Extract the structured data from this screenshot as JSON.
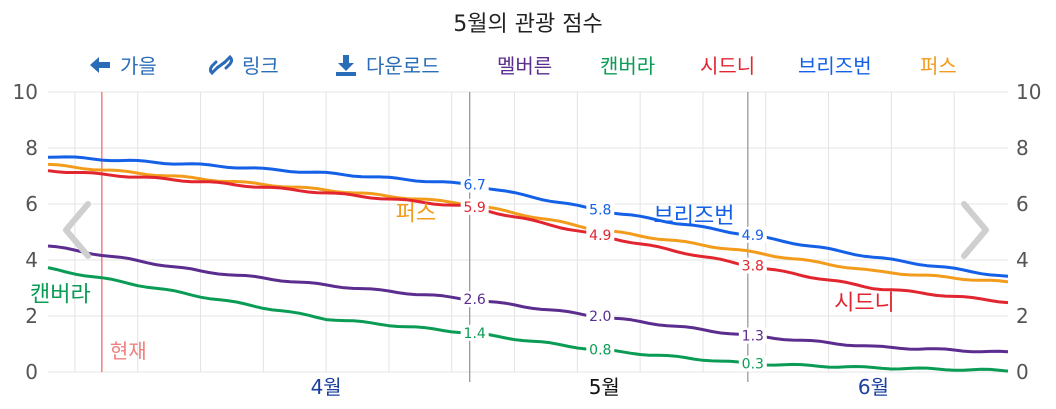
{
  "title": "5월의 관광 점수",
  "toolbar": {
    "back_label": "가을",
    "link_label": "링크",
    "download_label": "다운로드"
  },
  "icons": {
    "back": "arrow-left-icon",
    "link": "link-icon",
    "download": "download-icon",
    "prev": "chevron-left-icon",
    "next": "chevron-right-icon"
  },
  "colors": {
    "toolbar": "#2a6cb8",
    "now_line": "#f08080",
    "month_label": "#1a3f9c"
  },
  "now_label": "현재",
  "chart_data": {
    "type": "line",
    "title": "5월의 관광 점수",
    "ylim": [
      0,
      10
    ],
    "yticks": [
      0,
      2,
      4,
      6,
      8,
      10
    ],
    "x_labels": [
      "4월",
      "5월",
      "6월"
    ],
    "x_domain": [
      "2024-03-15",
      "2024-06-30"
    ],
    "current_date": "2024-03-21",
    "grid": true,
    "legend_position": "top",
    "series": [
      {
        "name": "멜버른",
        "color": "#5b2d8e",
        "dates": [
          "2024-03-15",
          "2024-04-01",
          "2024-04-15",
          "2024-05-01",
          "2024-05-15",
          "2024-06-01",
          "2024-06-15",
          "2024-06-30"
        ],
        "values": [
          4.5,
          3.6,
          3.1,
          2.6,
          2.0,
          1.3,
          0.9,
          0.7
        ]
      },
      {
        "name": "캔버라",
        "color": "#0a9c55",
        "dates": [
          "2024-03-15",
          "2024-04-01",
          "2024-04-15",
          "2024-05-01",
          "2024-05-15",
          "2024-06-01",
          "2024-06-15",
          "2024-06-30"
        ],
        "values": [
          3.7,
          2.7,
          1.9,
          1.4,
          0.8,
          0.3,
          0.15,
          0.05
        ]
      },
      {
        "name": "시드니",
        "color": "#e12630",
        "dates": [
          "2024-03-15",
          "2024-04-01",
          "2024-04-15",
          "2024-05-01",
          "2024-05-15",
          "2024-06-01",
          "2024-06-15",
          "2024-06-30"
        ],
        "values": [
          7.2,
          6.8,
          6.4,
          5.9,
          4.9,
          3.8,
          3.0,
          2.5
        ]
      },
      {
        "name": "브리즈번",
        "color": "#1460e6",
        "dates": [
          "2024-03-15",
          "2024-04-01",
          "2024-04-15",
          "2024-05-01",
          "2024-05-15",
          "2024-06-01",
          "2024-06-15",
          "2024-06-30"
        ],
        "values": [
          7.7,
          7.4,
          7.1,
          6.7,
          5.8,
          4.9,
          4.1,
          3.4
        ]
      },
      {
        "name": "퍼스",
        "color": "#f39c1c",
        "dates": [
          "2024-03-15",
          "2024-04-01",
          "2024-04-15",
          "2024-05-01",
          "2024-05-15",
          "2024-06-01",
          "2024-06-15",
          "2024-06-30"
        ],
        "values": [
          7.4,
          6.9,
          6.5,
          6.0,
          5.1,
          4.3,
          3.6,
          3.2
        ]
      }
    ],
    "data_labels": [
      {
        "series": "브리즈번",
        "date": "2024-05-01",
        "value": "6.7"
      },
      {
        "series": "시드니",
        "date": "2024-05-01",
        "value": "5.9"
      },
      {
        "series": "멜버른",
        "date": "2024-05-01",
        "value": "2.6"
      },
      {
        "series": "캔버라",
        "date": "2024-05-01",
        "value": "1.4"
      },
      {
        "series": "브리즈번",
        "date": "2024-05-15",
        "value": "5.8"
      },
      {
        "series": "시드니",
        "date": "2024-05-15",
        "value": "4.9"
      },
      {
        "series": "멜버른",
        "date": "2024-05-15",
        "value": "2.0"
      },
      {
        "series": "캔버라",
        "date": "2024-05-15",
        "value": "0.8"
      },
      {
        "series": "브리즈번",
        "date": "2024-06-01",
        "value": "4.9"
      },
      {
        "series": "시드니",
        "date": "2024-06-01",
        "value": "3.8"
      },
      {
        "series": "멜버른",
        "date": "2024-06-01",
        "value": "1.3"
      },
      {
        "series": "캔버라",
        "date": "2024-06-01",
        "value": "0.3"
      }
    ],
    "inline_labels": [
      {
        "series": "캔버라",
        "text": "캔버라"
      },
      {
        "series": "퍼스",
        "text": "퍼스"
      },
      {
        "series": "브리즈번",
        "text": "브리즈번"
      },
      {
        "series": "시드니",
        "text": "시드니"
      }
    ]
  }
}
